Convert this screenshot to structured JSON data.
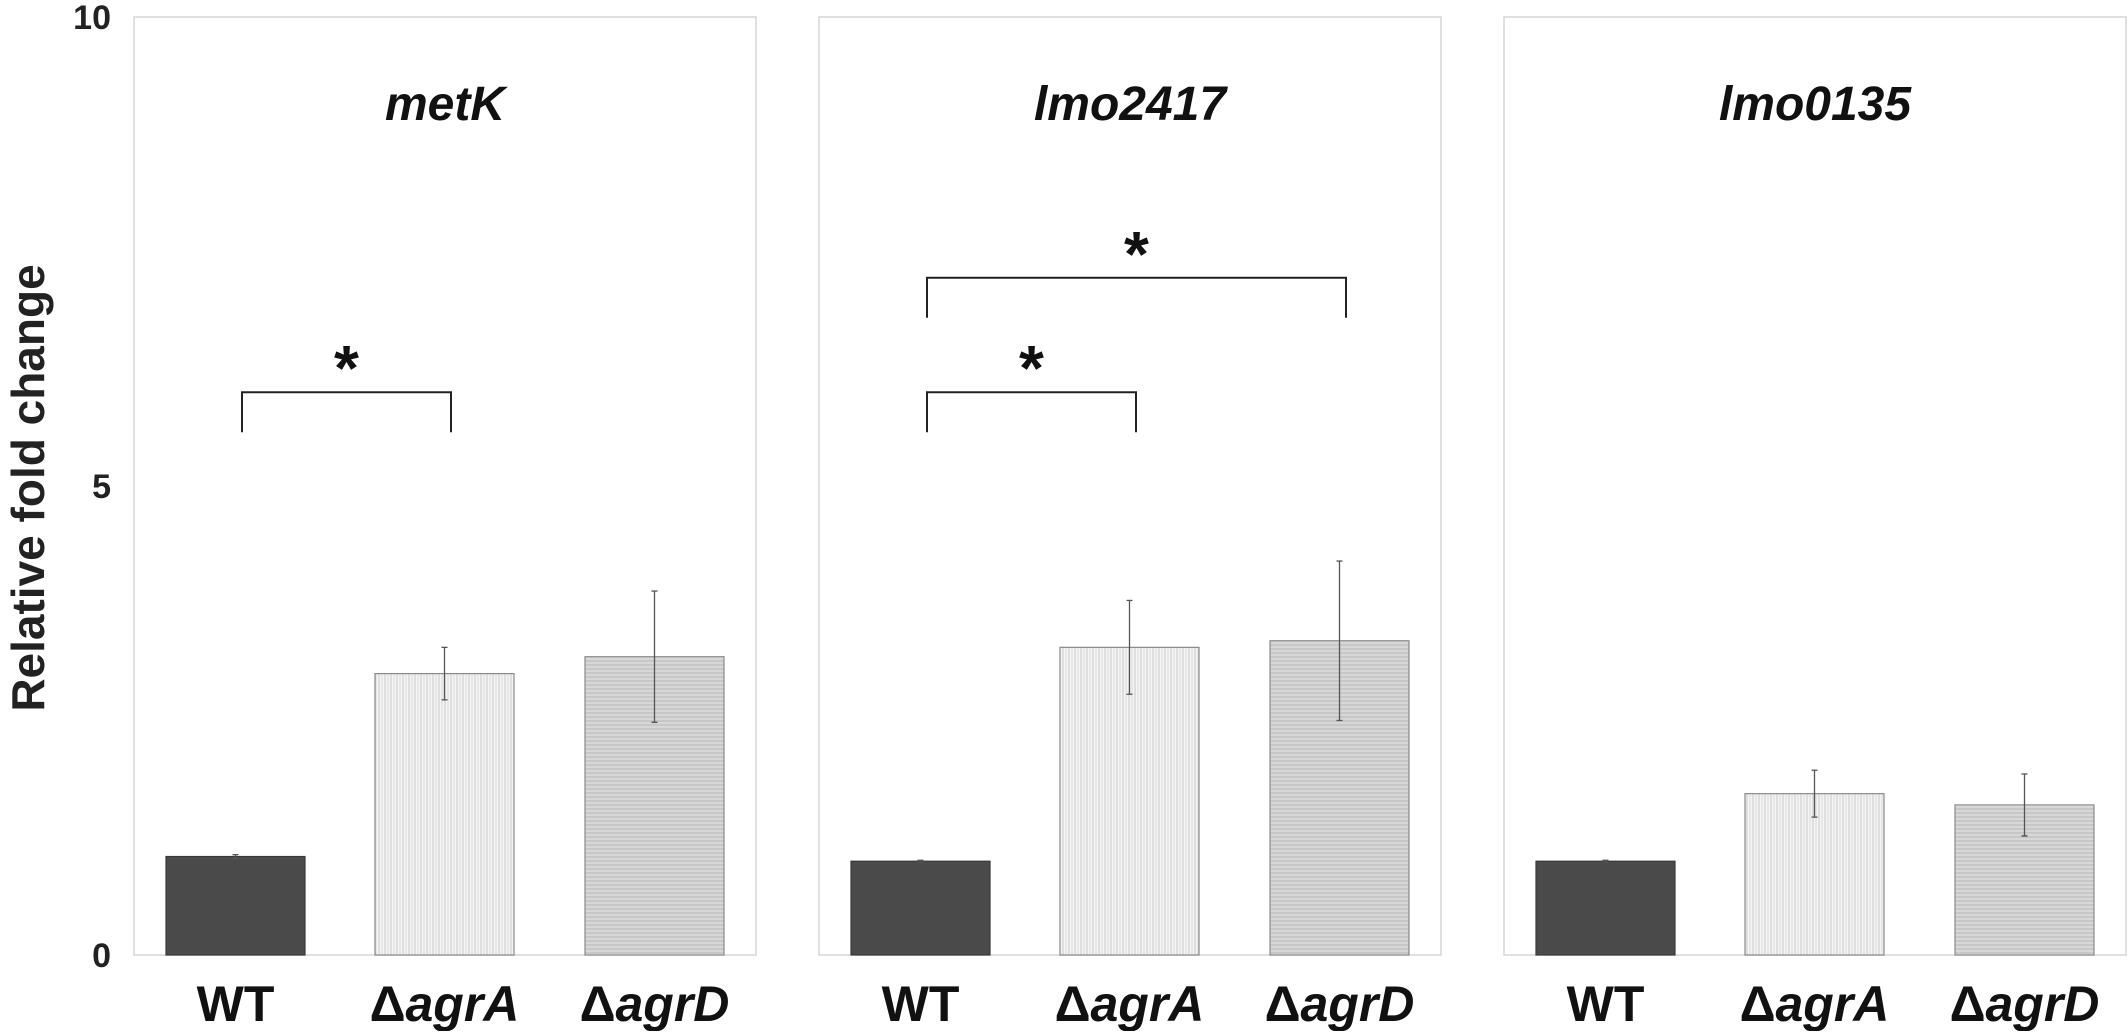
{
  "chart_data": {
    "type": "bar",
    "ylabel": "Relative fold change",
    "ylim": [
      0,
      10
    ],
    "yticks": [
      0,
      5,
      10
    ],
    "grid": false,
    "legend": "none",
    "categories": [
      {
        "prefix": "",
        "italic": "",
        "plain": "WT"
      },
      {
        "prefix": "Δ",
        "italic": "agrA",
        "plain": ""
      },
      {
        "prefix": "Δ",
        "italic": "agrD",
        "plain": ""
      }
    ],
    "colors": {
      "WT": "#4a4a4a",
      "agrA": "#efefef",
      "agrD": "#dddddd",
      "stroke": "#888888"
    },
    "panels": [
      {
        "title": "metK",
        "values": [
          1.05,
          3.0,
          3.18
        ],
        "errors": [
          0.02,
          0.28,
          0.7
        ],
        "significance": [
          {
            "from": 0,
            "to": 1,
            "y": 6.0,
            "label": "*"
          }
        ]
      },
      {
        "title": "lmo2417",
        "values": [
          1.0,
          3.28,
          3.35
        ],
        "errors": [
          0.01,
          0.5,
          0.85
        ],
        "significance": [
          {
            "from": 0,
            "to": 1,
            "y": 6.0,
            "label": "*"
          },
          {
            "from": 0,
            "to": 2,
            "y": 7.22,
            "label": "*"
          }
        ]
      },
      {
        "title": "lmo0135",
        "values": [
          1.0,
          1.72,
          1.6
        ],
        "errors": [
          0.01,
          0.25,
          0.33
        ],
        "significance": []
      }
    ]
  }
}
